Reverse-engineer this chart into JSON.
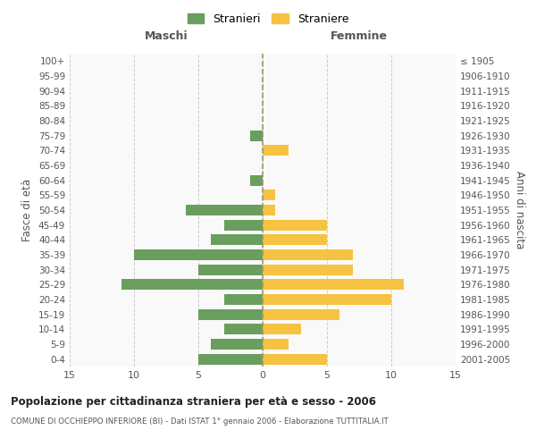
{
  "age_groups": [
    "0-4",
    "5-9",
    "10-14",
    "15-19",
    "20-24",
    "25-29",
    "30-34",
    "35-39",
    "40-44",
    "45-49",
    "50-54",
    "55-59",
    "60-64",
    "65-69",
    "70-74",
    "75-79",
    "80-84",
    "85-89",
    "90-94",
    "95-99",
    "100+"
  ],
  "birth_years": [
    "2001-2005",
    "1996-2000",
    "1991-1995",
    "1986-1990",
    "1981-1985",
    "1976-1980",
    "1971-1975",
    "1966-1970",
    "1961-1965",
    "1956-1960",
    "1951-1955",
    "1946-1950",
    "1941-1945",
    "1936-1940",
    "1931-1935",
    "1926-1930",
    "1921-1925",
    "1916-1920",
    "1911-1915",
    "1906-1910",
    "≤ 1905"
  ],
  "males": [
    5,
    4,
    3,
    5,
    3,
    11,
    5,
    10,
    4,
    3,
    6,
    0,
    1,
    0,
    0,
    1,
    0,
    0,
    0,
    0,
    0
  ],
  "females": [
    5,
    2,
    3,
    6,
    10,
    11,
    7,
    7,
    5,
    5,
    1,
    1,
    0,
    0,
    2,
    0,
    0,
    0,
    0,
    0,
    0
  ],
  "male_color": "#6a9e5e",
  "female_color": "#f5c242",
  "center_line_color": "#999966",
  "grid_color": "#cccccc",
  "bg_color": "#f9f9f9",
  "xlim": 15,
  "title": "Popolazione per cittadinanza straniera per età e sesso - 2006",
  "subtitle": "COMUNE DI OCCHIEPPO INFERIORE (BI) - Dati ISTAT 1° gennaio 2006 - Elaborazione TUTTITALIA.IT",
  "xlabel_left": "Maschi",
  "xlabel_right": "Femmine",
  "ylabel_left": "Fasce di età",
  "ylabel_right": "Anni di nascita",
  "legend_males": "Stranieri",
  "legend_females": "Straniere"
}
